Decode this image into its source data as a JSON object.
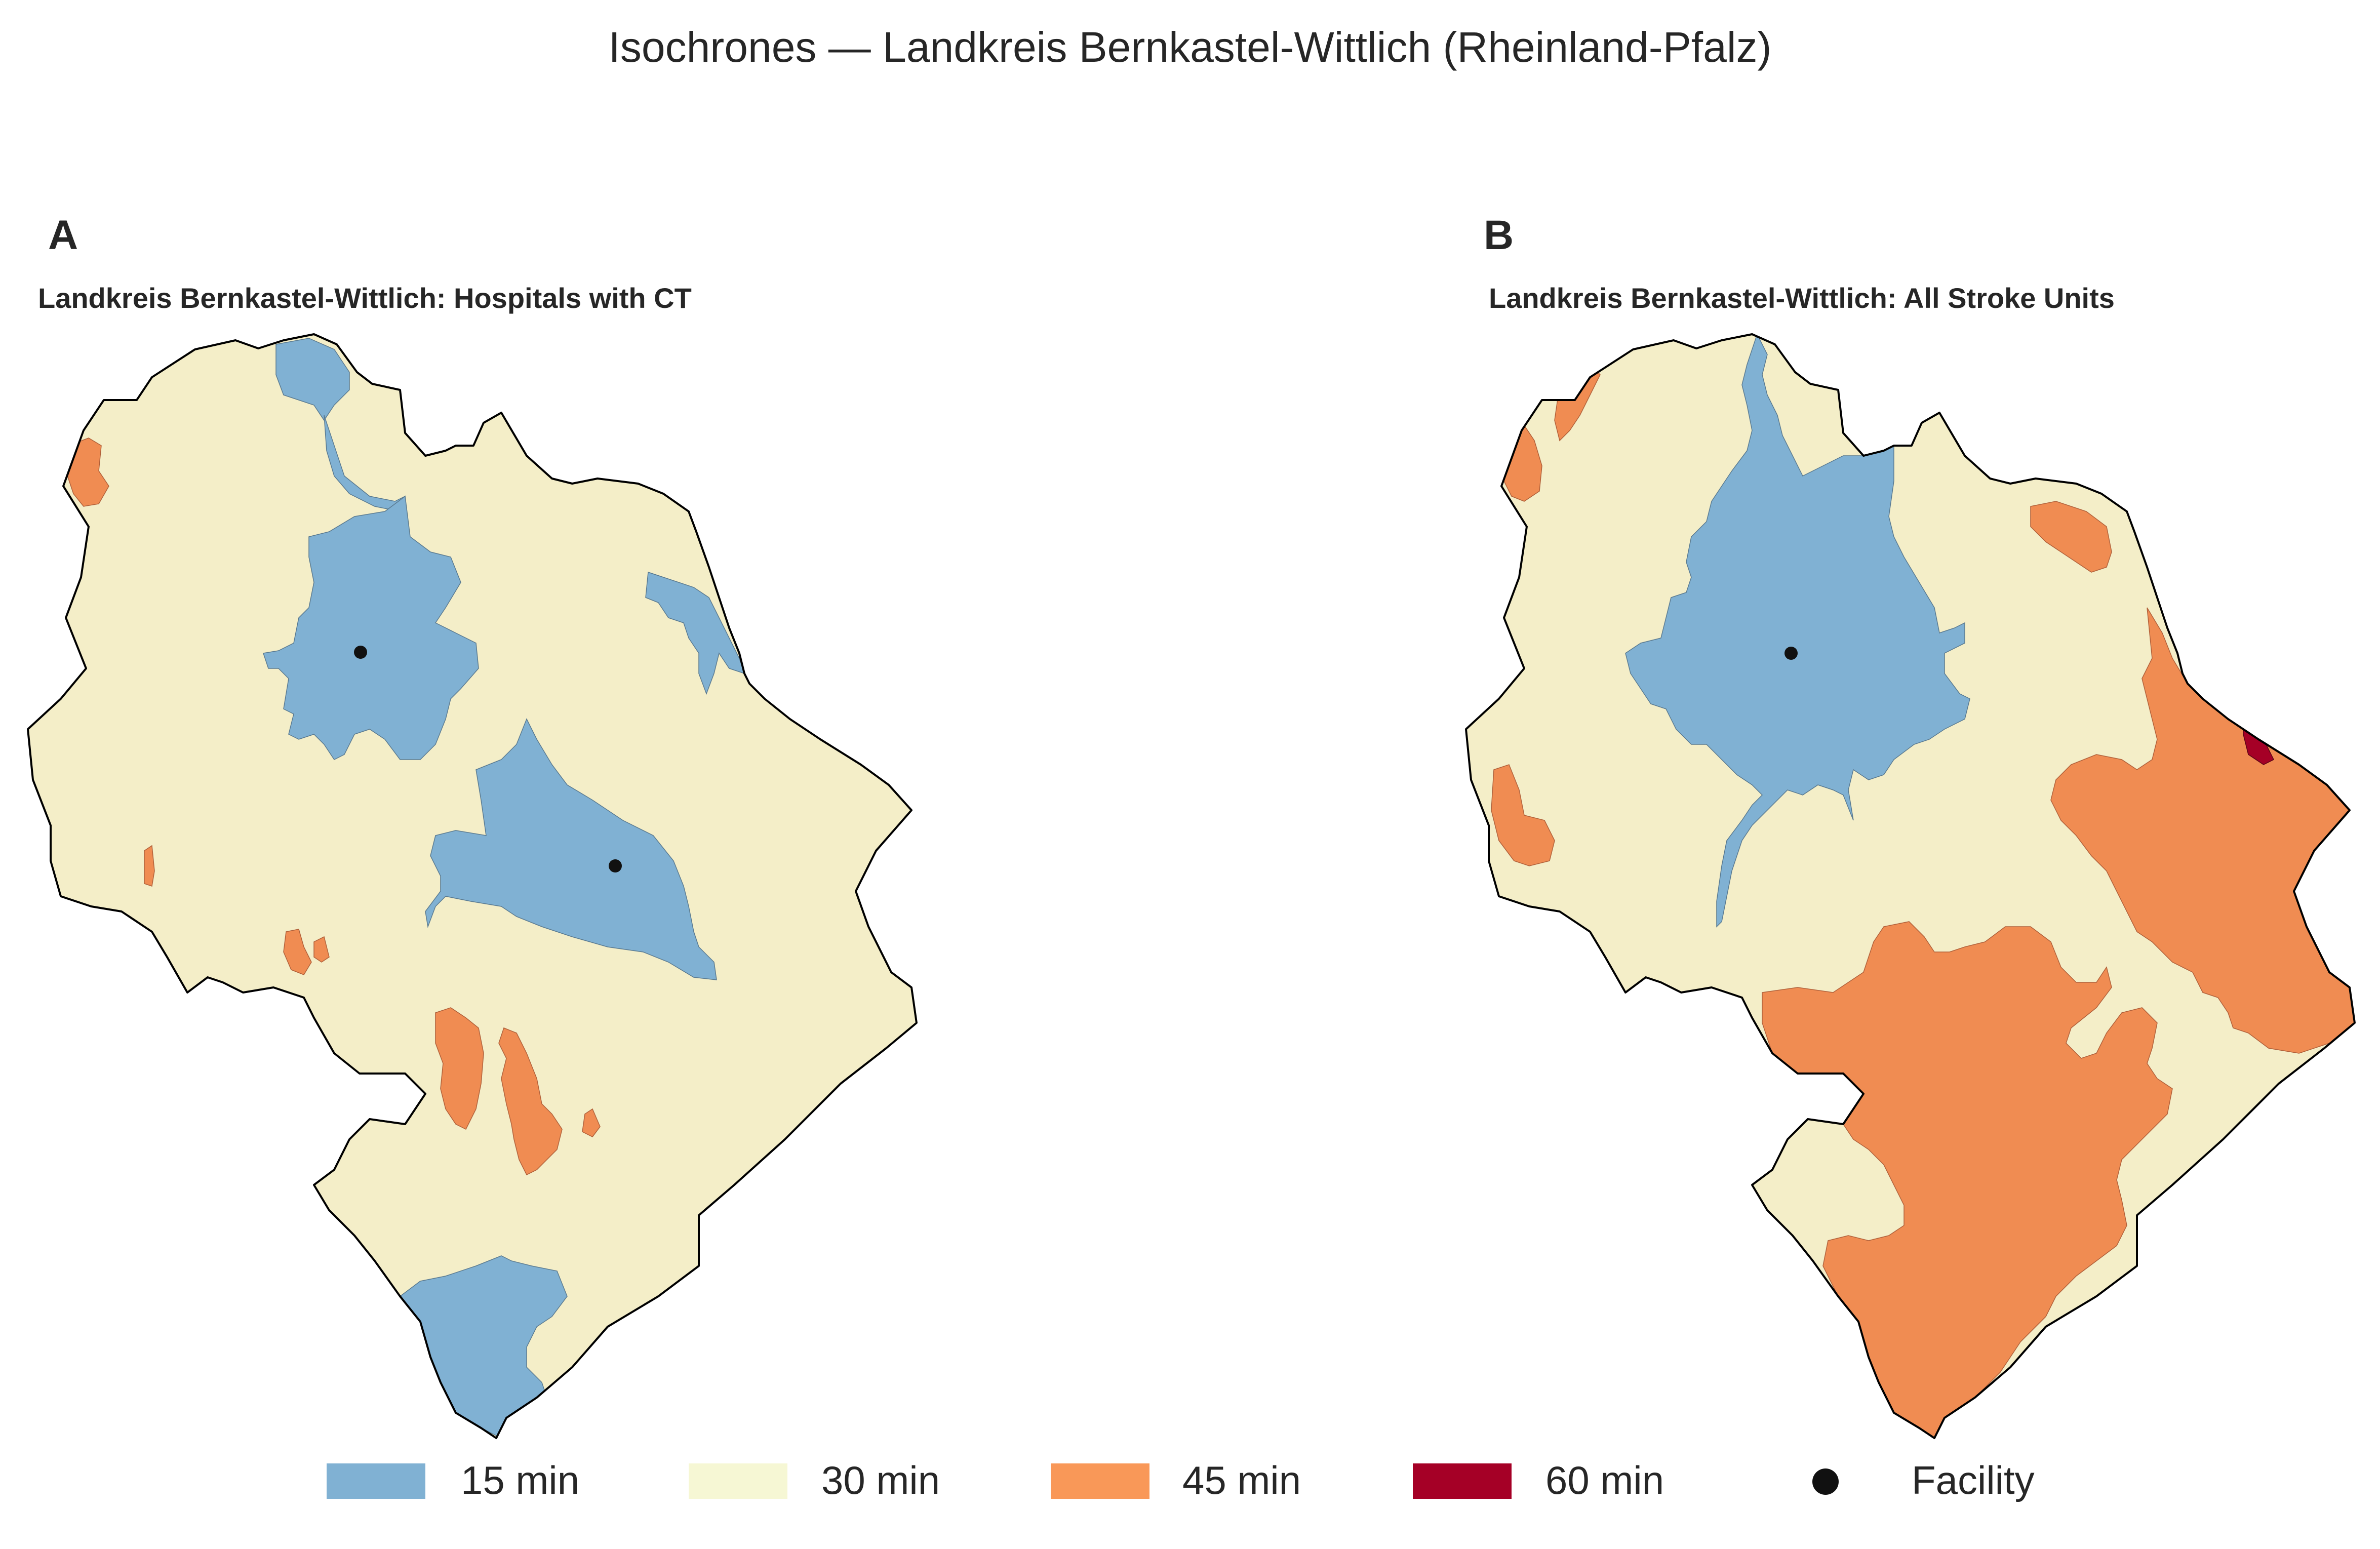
{
  "figure": {
    "title": "Isochrones — Landkreis Bernkastel-Wittlich (Rheinland-Pfalz)"
  },
  "colors": {
    "min15": "#80b1d3",
    "min30": "#f4eec8",
    "min45": "#f08c52",
    "min60": "#a50026",
    "facility": "#111111",
    "outline": "#000000"
  },
  "panels": [
    {
      "letter": "A",
      "title": "Landkreis Bernkastel-Wittlich: Hospitals with CT",
      "facility_count": 2
    },
    {
      "letter": "B",
      "title": "Landkreis Bernkastel-Wittlich: All Stroke Units",
      "facility_count": 1
    }
  ],
  "legend": {
    "items": [
      {
        "label": "15 min",
        "color_key": "min15",
        "shape": "patch"
      },
      {
        "label": "30 min",
        "color_key": "min30",
        "shape": "patch"
      },
      {
        "label": "45 min",
        "color_key": "min45",
        "shape": "patch"
      },
      {
        "label": "60 min",
        "color_key": "min60",
        "shape": "patch"
      },
      {
        "label": "Facility",
        "color_key": "facility",
        "shape": "dot"
      }
    ]
  }
}
